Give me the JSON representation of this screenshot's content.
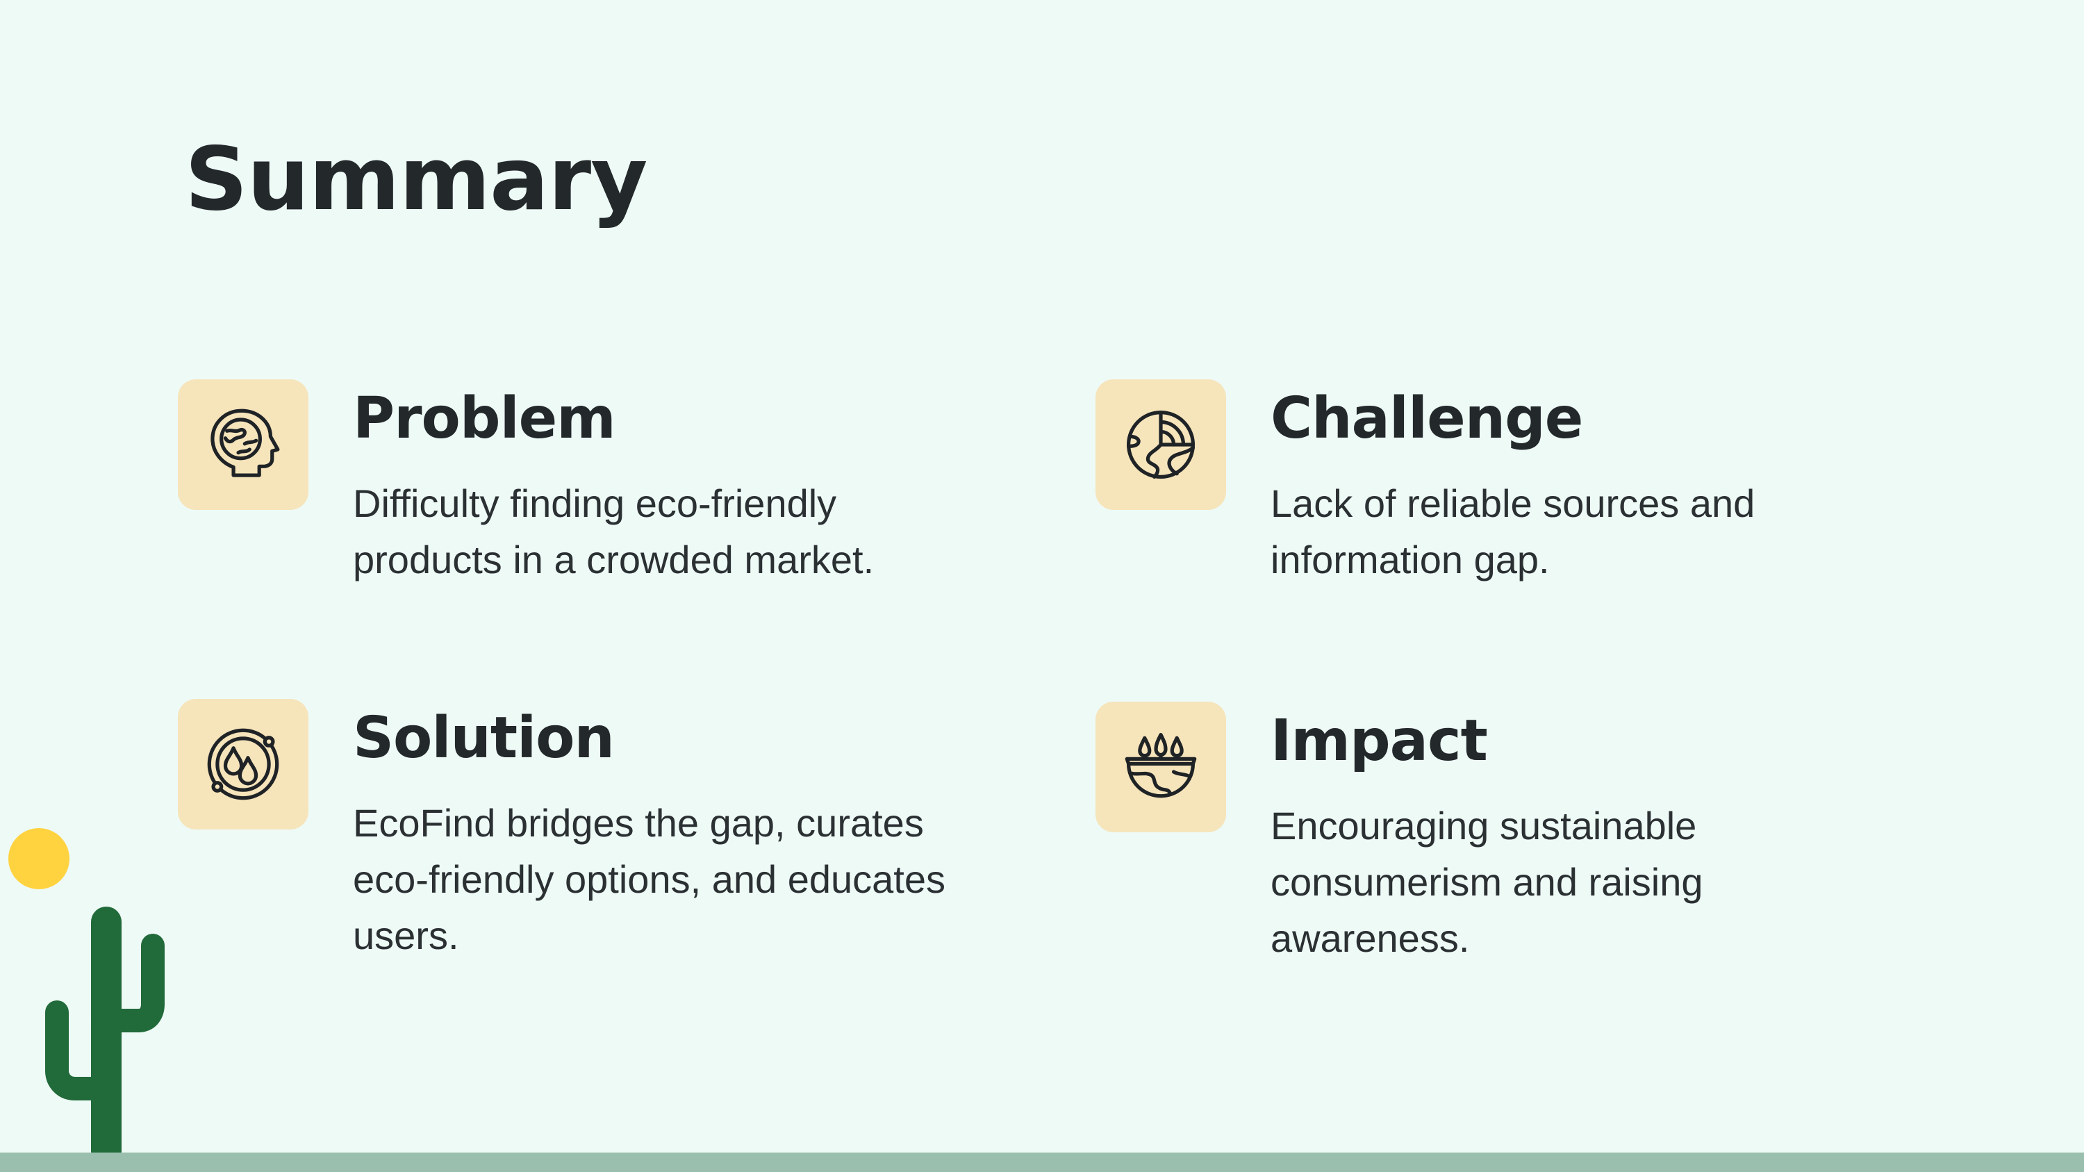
{
  "title": "Summary",
  "colors": {
    "background": "#eefaf6",
    "icon_tile": "#f6e4bb",
    "text": "#23282b",
    "cactus": "#216a3a",
    "sun": "#ffd23f",
    "ground": "#9bbfae"
  },
  "cards": [
    {
      "heading": "Problem",
      "text": "Difficulty finding eco-friendly products in a crowded market.",
      "icon": "earth-mind-icon"
    },
    {
      "heading": "Challenge",
      "text": "Lack of reliable sources and information gap.",
      "icon": "earth-sun-icon"
    },
    {
      "heading": "Solution",
      "text": "EcoFind bridges the gap, curates eco-friendly options, and educates users.",
      "icon": "water-cycle-icon"
    },
    {
      "heading": "Impact",
      "text": "Encouraging sustainable consumerism and raising awareness.",
      "icon": "earth-forest-icon"
    }
  ]
}
